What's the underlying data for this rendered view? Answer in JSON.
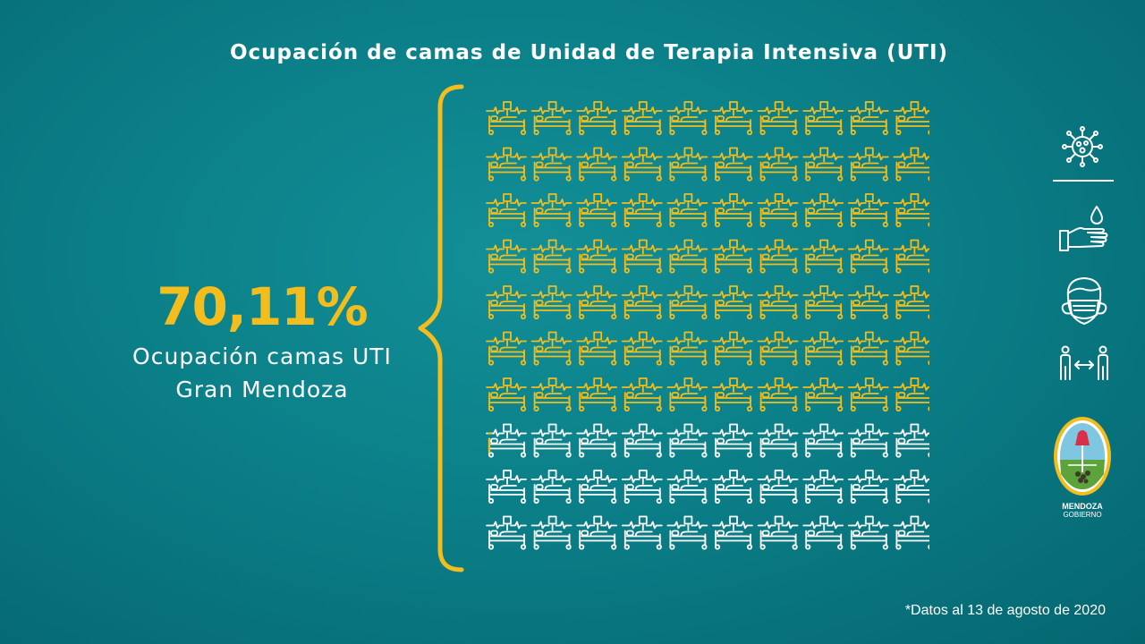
{
  "title": "Ocupación de camas de Unidad de Terapia Intensiva (UTI)",
  "stat": {
    "value": "70,11%",
    "label_line1": "Ocupación camas UTI",
    "label_line2": "Gran Mendoza"
  },
  "chart_data": {
    "type": "pictogram",
    "title": "Ocupación de camas de Unidad de Terapia Intensiva (UTI)",
    "total_icons": 100,
    "rows": 10,
    "columns": 10,
    "occupied_percent": 70.11,
    "occupied_color": "#f2bd1d",
    "free_color": "#ffffff"
  },
  "logo": {
    "line1": "MENDOZA",
    "line2": "GOBIERNO"
  },
  "side_icons": [
    "virus-icon",
    "handwash-icon",
    "face-mask-icon",
    "social-distance-icon"
  ],
  "footnote": "*Datos al 13 de agosto de 2020",
  "colors": {
    "accent": "#f2bd1d",
    "background": "#0b7f88",
    "text": "#ffffff"
  }
}
